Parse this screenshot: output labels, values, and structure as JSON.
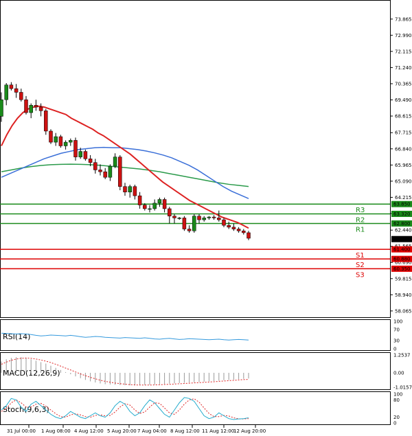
{
  "chart_data": {
    "type": "candlestick",
    "main": {
      "price_ticks": [
        "73.865",
        "72.990",
        "72.115",
        "71.240",
        "70.365",
        "69.490",
        "68.615",
        "67.715",
        "66.840",
        "65.965",
        "65.090",
        "64.215",
        "63.340",
        "62.440",
        "61.565",
        "60.690",
        "59.815",
        "58.940",
        "58.065"
      ],
      "current_price": "61.955",
      "ylim": [
        57.8,
        74.6
      ],
      "x_ticks": [
        "31 Jul 00:00",
        "1 Aug 08:00",
        "4 Aug 12:00",
        "5 Aug 20:00",
        "7 Aug 04:00",
        "8 Aug 12:00",
        "11 Aug 12:00",
        "12 Aug 20:00"
      ],
      "resistance": [
        {
          "label": "R3",
          "value": "63.850",
          "color": "#1a8a1a"
        },
        {
          "label": "R2",
          "value": "63.320",
          "color": "#1a8a1a"
        },
        {
          "label": "R1",
          "value": "62.800",
          "color": "#1a8a1a"
        }
      ],
      "support": [
        {
          "label": "S1",
          "value": "61.400",
          "color": "#dd0000"
        },
        {
          "label": "S2",
          "value": "60.880",
          "color": "#dd0000"
        },
        {
          "label": "S3",
          "value": "60.350",
          "color": "#dd0000"
        }
      ],
      "candles": [
        [
          68.6,
          69.9,
          68.3,
          69.5
        ],
        [
          69.5,
          70.4,
          69.2,
          70.3
        ],
        [
          70.3,
          70.45,
          70.0,
          70.1
        ],
        [
          70.1,
          70.35,
          69.6,
          69.9
        ],
        [
          69.9,
          70.1,
          69.4,
          69.5
        ],
        [
          69.5,
          69.7,
          68.7,
          68.8
        ],
        [
          68.8,
          69.3,
          68.5,
          69.2
        ],
        [
          69.2,
          69.5,
          68.9,
          69.1
        ],
        [
          69.1,
          69.3,
          68.6,
          68.9
        ],
        [
          68.9,
          69.0,
          67.6,
          67.8
        ],
        [
          67.8,
          67.9,
          67.1,
          67.2
        ],
        [
          67.2,
          67.7,
          67.0,
          67.5
        ],
        [
          67.5,
          67.6,
          66.9,
          67.0
        ],
        [
          67.0,
          67.3,
          66.8,
          67.2
        ],
        [
          67.2,
          67.4,
          67.0,
          67.3
        ],
        [
          67.3,
          67.45,
          66.2,
          66.4
        ],
        [
          66.4,
          66.9,
          66.3,
          66.7
        ],
        [
          66.7,
          66.8,
          66.2,
          66.3
        ],
        [
          66.3,
          66.5,
          65.9,
          66.1
        ],
        [
          66.1,
          66.3,
          65.5,
          65.7
        ],
        [
          65.7,
          66.0,
          65.4,
          65.6
        ],
        [
          65.6,
          65.8,
          65.2,
          65.3
        ],
        [
          65.3,
          66.0,
          65.1,
          65.9
        ],
        [
          65.9,
          66.6,
          65.8,
          66.4
        ],
        [
          66.4,
          66.5,
          64.6,
          64.8
        ],
        [
          64.8,
          65.0,
          64.3,
          64.5
        ],
        [
          64.5,
          64.9,
          64.2,
          64.8
        ],
        [
          64.8,
          64.9,
          64.1,
          64.3
        ],
        [
          64.3,
          64.5,
          63.6,
          63.8
        ],
        [
          63.8,
          63.9,
          63.5,
          63.6
        ],
        [
          63.6,
          63.8,
          63.4,
          63.6
        ],
        [
          63.6,
          64.1,
          63.5,
          63.9
        ],
        [
          63.9,
          64.2,
          63.7,
          64.1
        ],
        [
          64.1,
          64.2,
          63.4,
          63.6
        ],
        [
          63.6,
          63.7,
          62.8,
          63.2
        ],
        [
          63.2,
          63.3,
          62.8,
          63.1
        ],
        [
          63.1,
          63.15,
          63.0,
          63.1
        ],
        [
          63.1,
          63.2,
          62.4,
          62.5
        ],
        [
          62.5,
          62.7,
          62.3,
          62.4
        ],
        [
          62.4,
          63.3,
          62.3,
          63.2
        ],
        [
          63.2,
          63.3,
          62.8,
          63.0
        ],
        [
          63.0,
          63.2,
          62.9,
          63.1
        ],
        [
          63.1,
          63.2,
          63.0,
          63.15
        ],
        [
          63.15,
          63.25,
          63.0,
          63.1
        ],
        [
          63.1,
          63.5,
          62.9,
          63.0
        ],
        [
          63.0,
          63.1,
          62.6,
          62.7
        ],
        [
          62.7,
          62.9,
          62.5,
          62.6
        ],
        [
          62.6,
          62.8,
          62.4,
          62.5
        ],
        [
          62.5,
          62.6,
          62.3,
          62.4
        ],
        [
          62.4,
          62.5,
          62.2,
          62.3
        ],
        [
          62.3,
          62.4,
          61.9,
          62.0
        ]
      ],
      "ma_red": [
        67.0,
        67.6,
        68.1,
        68.5,
        68.8,
        69.0,
        69.1,
        69.15,
        69.1,
        69.0,
        68.9,
        68.8,
        68.7,
        68.5,
        68.35,
        68.2,
        68.05,
        67.9,
        67.7,
        67.55,
        67.35,
        67.15,
        66.95,
        66.75,
        66.55,
        66.3,
        66.05,
        65.8,
        65.55,
        65.3,
        65.05,
        64.85,
        64.65,
        64.45,
        64.25,
        64.05,
        63.9,
        63.75,
        63.6,
        63.45,
        63.3,
        63.15,
        63.05,
        62.95,
        62.85,
        62.7,
        62.55
      ],
      "ma_blue": [
        65.3,
        65.5,
        65.7,
        65.9,
        66.1,
        66.3,
        66.45,
        66.6,
        66.7,
        66.8,
        66.85,
        66.9,
        66.92,
        66.9,
        66.9,
        66.85,
        66.8,
        66.72,
        66.62,
        66.5,
        66.35,
        66.15,
        65.95,
        65.7,
        65.4,
        65.1,
        64.8,
        64.55,
        64.35,
        64.15
      ],
      "ma_green": [
        65.6,
        65.7,
        65.8,
        65.88,
        65.94,
        65.98,
        66.0,
        66.01,
        66.0,
        65.98,
        65.95,
        65.9,
        65.85,
        65.8,
        65.75,
        65.68,
        65.6,
        65.5,
        65.4,
        65.3,
        65.2,
        65.1,
        65.0,
        64.92,
        64.86,
        64.8
      ],
      "colors": {
        "up": "#1a8a1a",
        "down": "#cc1111",
        "ma_red": "#dd2222",
        "ma_blue": "#3a6fd8",
        "ma_green": "#2a9a4a",
        "current_bg": "#000000"
      }
    },
    "rsi": {
      "label": "RSI(14)",
      "ticks": [
        "100",
        "70",
        "30",
        "0"
      ],
      "values": [
        57,
        56,
        55,
        54,
        55,
        54,
        52,
        49,
        47,
        48,
        50,
        49,
        48,
        47,
        49,
        47,
        44,
        42,
        43,
        45,
        44,
        42,
        41,
        40,
        39,
        41,
        40,
        39,
        38,
        40,
        38,
        36,
        35,
        37,
        38,
        36,
        34,
        35,
        37,
        36,
        35,
        34,
        33,
        34,
        35,
        33,
        32,
        33,
        34,
        33,
        32
      ],
      "color": "#3399dd"
    },
    "macd": {
      "label": "MACD(12,26,9)",
      "ticks": [
        "1.2537",
        "0.00",
        "-1.0157"
      ],
      "hist": [
        0.8,
        0.95,
        1.05,
        1.1,
        1.1,
        1.05,
        0.95,
        0.85,
        0.75,
        0.65,
        0.5,
        0.35,
        0.2,
        0.05,
        -0.1,
        -0.25,
        -0.38,
        -0.5,
        -0.6,
        -0.68,
        -0.75,
        -0.8,
        -0.82,
        -0.84,
        -0.86,
        -0.87,
        -0.88,
        -0.88,
        -0.87,
        -0.85,
        -0.84,
        -0.82,
        -0.8,
        -0.78,
        -0.76,
        -0.74,
        -0.72,
        -0.7,
        -0.68,
        -0.66,
        -0.64,
        -0.62,
        -0.6,
        -0.58,
        -0.55,
        -0.52,
        -0.5,
        -0.48,
        -0.45,
        -0.42,
        -0.4
      ],
      "signal": [
        0.6,
        0.75,
        0.88,
        0.97,
        1.02,
        1.04,
        1.02,
        0.97,
        0.9,
        0.82,
        0.72,
        0.6,
        0.47,
        0.33,
        0.2,
        0.06,
        -0.08,
        -0.2,
        -0.32,
        -0.42,
        -0.52,
        -0.6,
        -0.66,
        -0.72,
        -0.76,
        -0.8,
        -0.83,
        -0.85,
        -0.86,
        -0.86,
        -0.86,
        -0.85,
        -0.84,
        -0.82,
        -0.81,
        -0.79,
        -0.77,
        -0.75,
        -0.73,
        -0.71,
        -0.69,
        -0.67,
        -0.65,
        -0.63,
        -0.6,
        -0.58,
        -0.55,
        -0.53,
        -0.5,
        -0.48,
        -0.46
      ],
      "hist_color": "#999999",
      "signal_color": "#dd2222"
    },
    "stoch": {
      "label": "Stoch(9,6,3)",
      "ticks": [
        "100",
        "80",
        "20",
        "0"
      ],
      "k": [
        45,
        60,
        85,
        80,
        55,
        40,
        65,
        75,
        60,
        45,
        30,
        20,
        15,
        25,
        40,
        30,
        20,
        15,
        25,
        35,
        25,
        20,
        35,
        60,
        75,
        65,
        40,
        25,
        35,
        60,
        80,
        70,
        50,
        30,
        20,
        45,
        70,
        88,
        85,
        75,
        50,
        25,
        15,
        20,
        35,
        25,
        15,
        12,
        14,
        15,
        18
      ],
      "d": [
        40,
        50,
        70,
        80,
        70,
        55,
        55,
        65,
        68,
        58,
        45,
        32,
        22,
        20,
        28,
        32,
        28,
        22,
        20,
        26,
        28,
        25,
        26,
        38,
        55,
        67,
        62,
        45,
        33,
        38,
        55,
        70,
        68,
        52,
        35,
        30,
        45,
        65,
        80,
        84,
        72,
        52,
        33,
        22,
        22,
        26,
        24,
        18,
        14,
        14,
        15
      ],
      "k_color": "#22aacc",
      "d_color": "#dd2222"
    }
  }
}
